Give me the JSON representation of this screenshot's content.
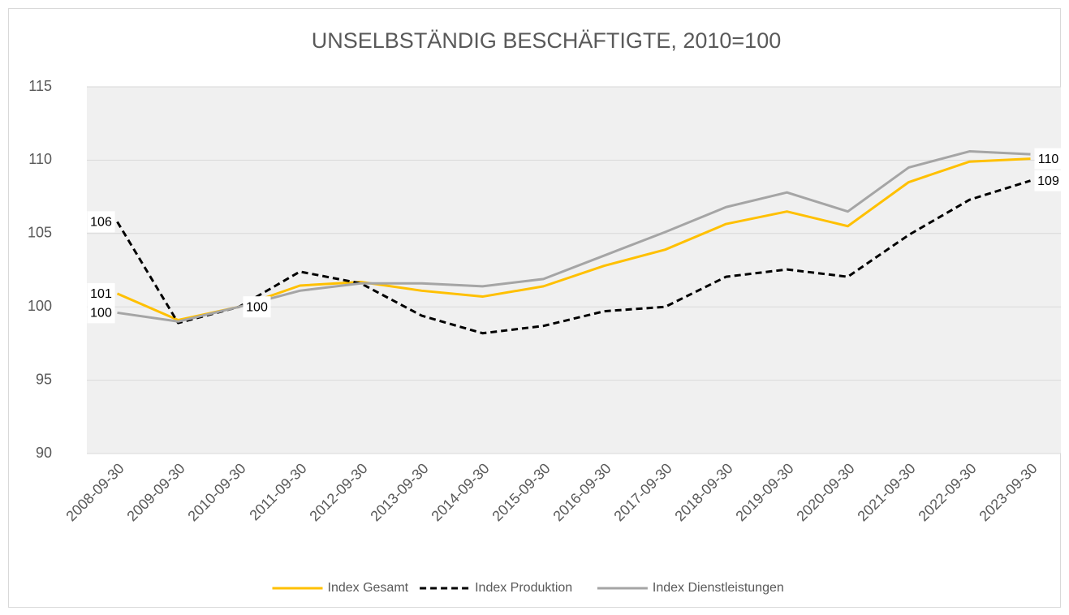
{
  "chart_data": {
    "type": "line",
    "title": "UNSELBSTÄNDIG BESCHÄFTIGTE, 2010=100",
    "categories": [
      "2008-09-30",
      "2009-09-30",
      "2010-09-30",
      "2011-09-30",
      "2012-09-30",
      "2013-09-30",
      "2014-09-30",
      "2015-09-30",
      "2016-09-30",
      "2017-09-30",
      "2018-09-30",
      "2019-09-30",
      "2020-09-30",
      "2021-09-30",
      "2022-09-30",
      "2023-09-30"
    ],
    "series": [
      {
        "name": "Index Gesamt",
        "color": "#FFC000",
        "dash": false,
        "values": [
          100.9,
          99.1,
          100,
          101.45,
          101.7,
          101.1,
          100.7,
          101.4,
          102.8,
          103.9,
          105.65,
          106.5,
          105.5,
          108.5,
          109.9,
          110.1
        ],
        "value_labels": [
          "101",
          null,
          "100",
          null,
          null,
          null,
          null,
          null,
          null,
          null,
          null,
          null,
          null,
          null,
          null,
          "110"
        ]
      },
      {
        "name": "Index Produktion",
        "color": "#000000",
        "dash": true,
        "values": [
          105.8,
          98.9,
          100,
          102.4,
          101.6,
          99.4,
          98.2,
          98.7,
          99.7,
          100,
          102.05,
          102.55,
          102.05,
          104.9,
          107.3,
          108.6
        ],
        "value_labels": [
          "106",
          null,
          null,
          null,
          null,
          null,
          null,
          null,
          null,
          null,
          null,
          null,
          null,
          null,
          null,
          "109"
        ]
      },
      {
        "name": "Index Dienstleistungen",
        "color": "#A5A5A5",
        "dash": false,
        "values": [
          99.6,
          99.0,
          100,
          101.1,
          101.6,
          101.6,
          101.4,
          101.9,
          103.5,
          105.1,
          106.8,
          107.8,
          106.5,
          109.5,
          110.6,
          110.4
        ],
        "value_labels": [
          "100",
          null,
          null,
          null,
          null,
          null,
          null,
          null,
          null,
          null,
          null,
          null,
          null,
          null,
          null,
          null
        ]
      }
    ],
    "ylim": [
      90,
      115
    ],
    "yticks": [
      90,
      95,
      100,
      105,
      110,
      115
    ],
    "grid": true,
    "legend": "bottom"
  }
}
